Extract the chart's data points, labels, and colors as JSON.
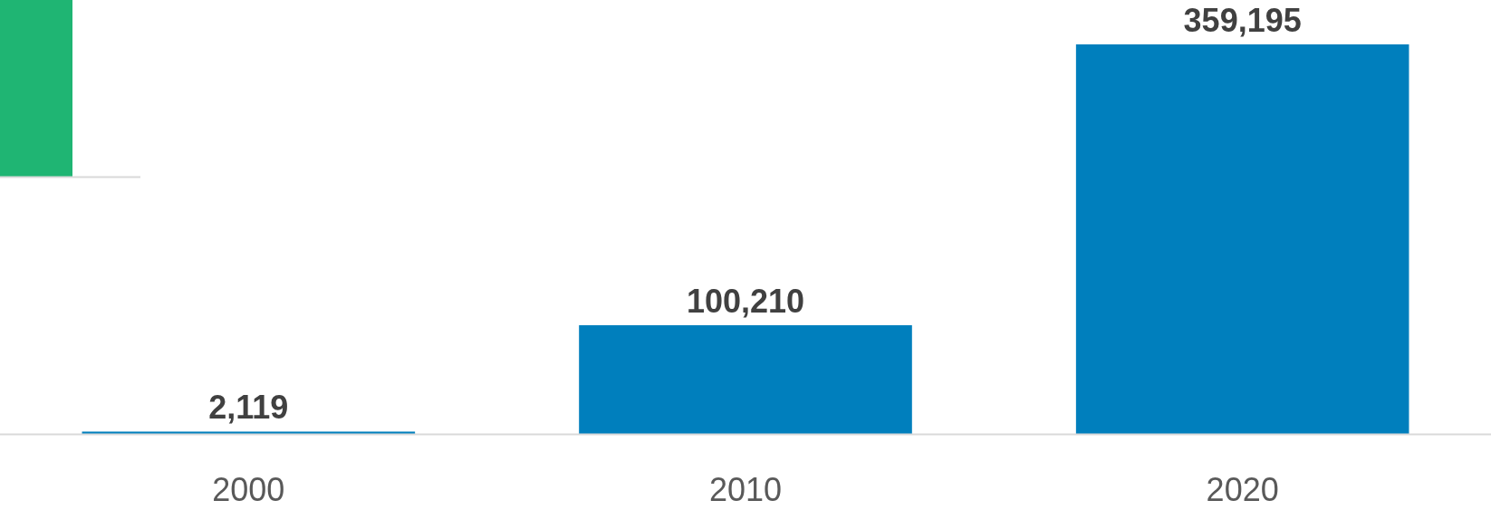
{
  "chart_data": {
    "type": "bar",
    "categories": [
      "2000",
      "2010",
      "2020"
    ],
    "values": [
      2119,
      100210,
      359195
    ],
    "color": "#007fbd",
    "value_labels": [
      "2,119",
      "100,210",
      "359,195"
    ]
  }
}
